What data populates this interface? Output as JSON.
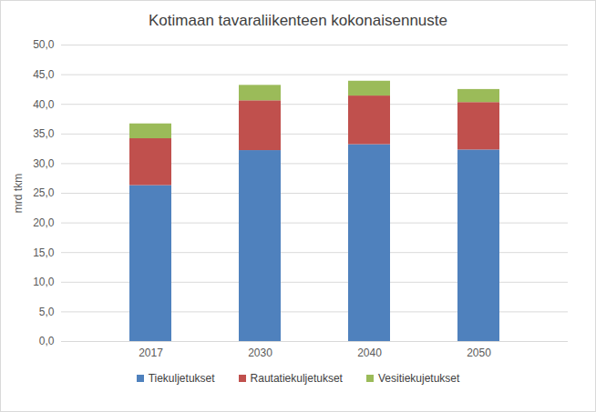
{
  "chart_data": {
    "type": "bar",
    "title": "Kotimaan tavaraliikenteen kokonaisennuste",
    "y_label": "mrd tkm",
    "categories": [
      "2017",
      "2030",
      "2040",
      "2050"
    ],
    "stacked": true,
    "series": [
      {
        "name": "Tiekuljetukset",
        "color": "#4f81bd",
        "values": [
          26.3,
          32.2,
          33.2,
          32.3
        ]
      },
      {
        "name": "Rautatiekuljetukset",
        "color": "#c0504d",
        "values": [
          7.9,
          8.4,
          8.2,
          8.0
        ]
      },
      {
        "name": "Vesitiekujetukset",
        "color": "#9bbb59",
        "values": [
          2.5,
          2.6,
          2.5,
          2.2
        ]
      }
    ],
    "ylim": [
      0,
      50
    ],
    "yticks": [
      {
        "value": 0,
        "label": "0,0"
      },
      {
        "value": 5,
        "label": "5,0"
      },
      {
        "value": 10,
        "label": "10,0"
      },
      {
        "value": 15,
        "label": "15,0"
      },
      {
        "value": 20,
        "label": "20,0"
      },
      {
        "value": 25,
        "label": "25,0"
      },
      {
        "value": 30,
        "label": "30,0"
      },
      {
        "value": 35,
        "label": "35,0"
      },
      {
        "value": 40,
        "label": "40,0"
      },
      {
        "value": 45,
        "label": "45,0"
      },
      {
        "value": 50,
        "label": "50,0"
      }
    ],
    "grid": true,
    "legend": "bottom"
  }
}
